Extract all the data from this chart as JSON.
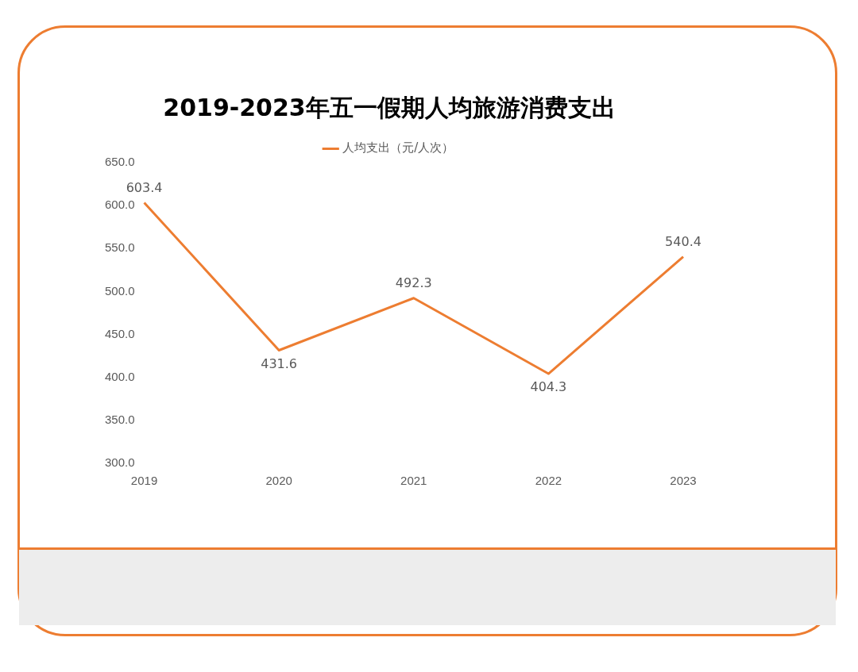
{
  "chart_data": {
    "type": "line",
    "title": "2019-2023年五一假期人均旅游消费支出",
    "categories": [
      "2019",
      "2020",
      "2021",
      "2022",
      "2023"
    ],
    "series": [
      {
        "name": "人均支出（元/人次）",
        "color": "#ed7d31",
        "values": [
          603.4,
          431.6,
          492.3,
          404.3,
          540.4
        ]
      }
    ],
    "ylim": [
      300,
      650
    ],
    "yticks": [
      {
        "value": 300,
        "label": "300.0"
      },
      {
        "value": 350,
        "label": "350.0"
      },
      {
        "value": 400,
        "label": "400.0"
      },
      {
        "value": 450,
        "label": "450.0"
      },
      {
        "value": 500,
        "label": "500.0"
      },
      {
        "value": 550,
        "label": "550.0"
      },
      {
        "value": 600,
        "label": "600.0"
      },
      {
        "value": 650,
        "label": "650.0"
      }
    ],
    "data_labels": true,
    "legend": "top",
    "grid": false,
    "marker": "none",
    "line_style": "solid"
  }
}
